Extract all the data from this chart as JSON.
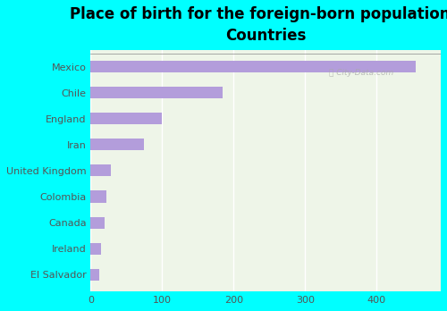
{
  "categories": [
    "Mexico",
    "Chile",
    "England",
    "Iran",
    "United Kingdom",
    "Colombia",
    "Canada",
    "Ireland",
    "El Salvador"
  ],
  "values": [
    455,
    185,
    100,
    75,
    28,
    22,
    20,
    15,
    12
  ],
  "bar_color": "#b39ddb",
  "bg_color": "#00ffff",
  "plot_bg": "#eef5e8",
  "title_line1": "Place of birth for the foreign-born population -",
  "title_line2": "Countries",
  "title_fontsize": 12,
  "xlim": [
    0,
    490
  ],
  "xticks": [
    0,
    100,
    200,
    300,
    400
  ],
  "watermark": "Ⓐ City-Data.com",
  "bar_height": 0.45,
  "tick_fontsize": 8,
  "label_fontsize": 8
}
